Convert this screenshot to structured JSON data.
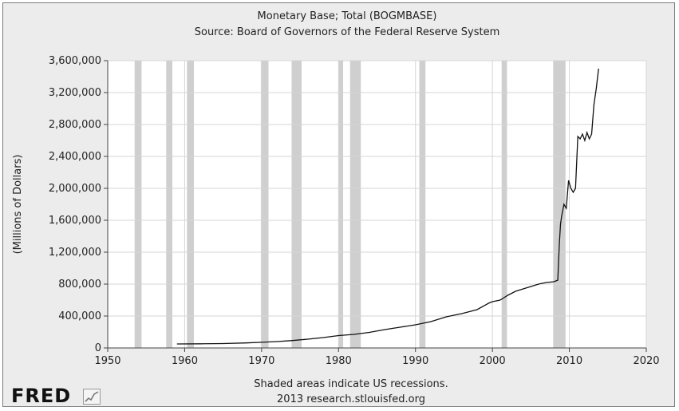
{
  "chart_data": {
    "type": "line",
    "title": "Monetary Base; Total (BOGMBASE)",
    "subtitle": "Source: Board of Governors of the Federal Reserve System",
    "xlabel": "",
    "ylabel": "(Millions of Dollars)",
    "xlim": [
      1950,
      2020
    ],
    "ylim": [
      0,
      3600000
    ],
    "x_ticks": [
      1950,
      1960,
      1970,
      1980,
      1990,
      2000,
      2010,
      2020
    ],
    "y_ticks": [
      0,
      400000,
      800000,
      1200000,
      1600000,
      2000000,
      2400000,
      2800000,
      3200000,
      3600000
    ],
    "y_tick_labels": [
      "0",
      "400,000",
      "800,000",
      "1,200,000",
      "1,600,000",
      "2,000,000",
      "2,400,000",
      "2,800,000",
      "3,200,000",
      "3,600,000"
    ],
    "grid": true,
    "recessions": [
      [
        1953.5,
        1954.4
      ],
      [
        1957.6,
        1958.4
      ],
      [
        1960.3,
        1961.2
      ],
      [
        1969.9,
        1970.9
      ],
      [
        1973.9,
        1975.2
      ],
      [
        1980.0,
        1980.6
      ],
      [
        1981.5,
        1982.9
      ],
      [
        1990.5,
        1991.3
      ],
      [
        2001.2,
        2001.9
      ],
      [
        2007.9,
        2009.5
      ]
    ],
    "series": [
      {
        "x": [
          1959.0,
          1962,
          1965,
          1968,
          1970,
          1972,
          1974,
          1976,
          1978,
          1980,
          1982,
          1984,
          1986,
          1988,
          1990,
          1992,
          1994,
          1996,
          1998,
          1999.5,
          2000.0,
          2001,
          2002,
          2003,
          2004,
          2005,
          2006,
          2007,
          2008.0,
          2008.5,
          2008.7,
          2008.85,
          2009.0,
          2009.3,
          2009.6,
          2009.9,
          2010.2,
          2010.5,
          2010.8,
          2011.1,
          2011.4,
          2011.7,
          2012.0,
          2012.3,
          2012.6,
          2012.9,
          2013.2,
          2013.5,
          2013.8
        ],
        "values": [
          50000,
          52000,
          55000,
          63000,
          71000,
          80000,
          93000,
          110000,
          130000,
          155000,
          170000,
          195000,
          230000,
          260000,
          290000,
          330000,
          390000,
          430000,
          480000,
          560000,
          580000,
          600000,
          660000,
          710000,
          740000,
          770000,
          800000,
          820000,
          830000,
          850000,
          1300000,
          1550000,
          1650000,
          1800000,
          1750000,
          2100000,
          2000000,
          1950000,
          2000000,
          2650000,
          2620000,
          2680000,
          2600000,
          2700000,
          2620000,
          2680000,
          3050000,
          3250000,
          3500000
        ]
      }
    ]
  },
  "footer": {
    "line1": "Shaded areas indicate US recessions.",
    "line2": "2013 research.stlouisfed.org"
  },
  "logo": {
    "text": "FRED"
  }
}
